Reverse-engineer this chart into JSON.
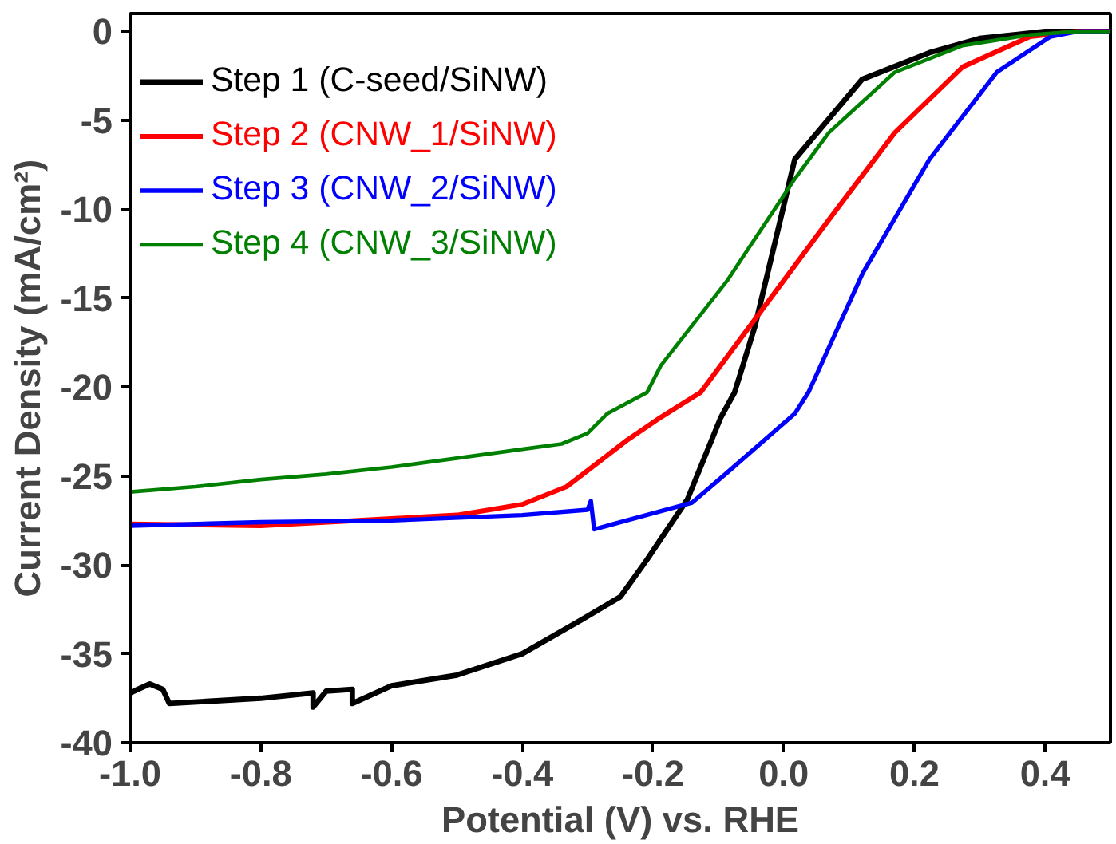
{
  "chart_data": {
    "type": "line",
    "xlabel": "Potential (V) vs. RHE",
    "ylabel": "Current Density (mA/cm²)",
    "xlim": [
      -1.0,
      0.5
    ],
    "ylim": [
      -40,
      1
    ],
    "xticks": [
      {
        "value": -1.0,
        "label": "-1.0"
      },
      {
        "value": -0.8,
        "label": "-0.8"
      },
      {
        "value": -0.6,
        "label": "-0.6"
      },
      {
        "value": -0.4,
        "label": "-0.4"
      },
      {
        "value": -0.2,
        "label": "-0.2"
      },
      {
        "value": 0.0,
        "label": "0.0"
      },
      {
        "value": 0.2,
        "label": "0.2"
      },
      {
        "value": 0.4,
        "label": "0.4"
      }
    ],
    "yticks": [
      0,
      -5,
      -10,
      -15,
      -20,
      -25,
      -30,
      -35,
      -40
    ],
    "grid": false,
    "legend": "top left",
    "line_style": "solid",
    "marker": "none",
    "series": [
      {
        "name": "Step 1 (C-seed/SiNW)",
        "color": "#000000",
        "x": [
          -1.0,
          -0.97,
          -0.95,
          -0.94,
          -0.8,
          -0.72,
          -0.72,
          -0.7,
          -0.66,
          -0.66,
          -0.6,
          -0.5,
          -0.4,
          -0.31,
          -0.25,
          -0.209,
          -0.147,
          -0.096,
          -0.075,
          -0.044,
          0.017,
          0.12,
          0.223,
          0.3,
          0.4,
          0.5
        ],
        "values": [
          -37.2,
          -36.7,
          -37.0,
          -37.8,
          -37.5,
          -37.2,
          -38.0,
          -37.1,
          -37.0,
          -37.8,
          -36.8,
          -36.2,
          -35.0,
          -33.1,
          -31.8,
          -29.7,
          -26.3,
          -21.7,
          -20.3,
          -16.6,
          -7.2,
          -2.7,
          -1.2,
          -0.4,
          0.0,
          0.0
        ]
      },
      {
        "name": "Step 2 (CNW_1/SiNW)",
        "color": "#ff0000",
        "x": [
          -1.0,
          -0.8,
          -0.6,
          -0.5,
          -0.4,
          -0.332,
          -0.24,
          -0.188,
          -0.127,
          -0.044,
          0.069,
          0.17,
          0.274,
          0.377,
          0.45,
          0.5
        ],
        "values": [
          -27.7,
          -27.8,
          -27.4,
          -27.2,
          -26.6,
          -25.6,
          -23.0,
          -21.7,
          -20.3,
          -16.2,
          -10.6,
          -5.7,
          -2.0,
          -0.3,
          0.0,
          0.0
        ]
      },
      {
        "name": "Step 3 (CNW_2/SiNW)",
        "color": "#0000ff",
        "x": [
          -1.0,
          -0.8,
          -0.6,
          -0.4,
          -0.3,
          -0.295,
          -0.29,
          -0.2,
          -0.14,
          -0.086,
          0.017,
          0.038,
          0.121,
          0.223,
          0.326,
          0.408,
          0.45,
          0.5
        ],
        "values": [
          -27.8,
          -27.6,
          -27.5,
          -27.2,
          -26.9,
          -26.4,
          -28.0,
          -27.1,
          -26.5,
          -24.8,
          -21.5,
          -20.3,
          -13.6,
          -7.2,
          -2.3,
          -0.3,
          0.0,
          0.0
        ]
      },
      {
        "name": "Step 4 (CNW_3/SiNW)",
        "color": "#008000",
        "x": [
          -1.0,
          -0.9,
          -0.8,
          -0.7,
          -0.6,
          -0.5,
          -0.4,
          -0.34,
          -0.3,
          -0.27,
          -0.209,
          -0.188,
          -0.086,
          -0.05,
          0.017,
          0.069,
          0.17,
          0.274,
          0.377,
          0.45,
          0.5
        ],
        "values": [
          -25.9,
          -25.6,
          -25.2,
          -24.9,
          -24.5,
          -24.0,
          -23.5,
          -23.2,
          -22.6,
          -21.5,
          -20.3,
          -18.8,
          -14.0,
          -12.0,
          -8.3,
          -5.7,
          -2.3,
          -0.8,
          -0.2,
          0.0,
          0.0
        ]
      }
    ]
  }
}
